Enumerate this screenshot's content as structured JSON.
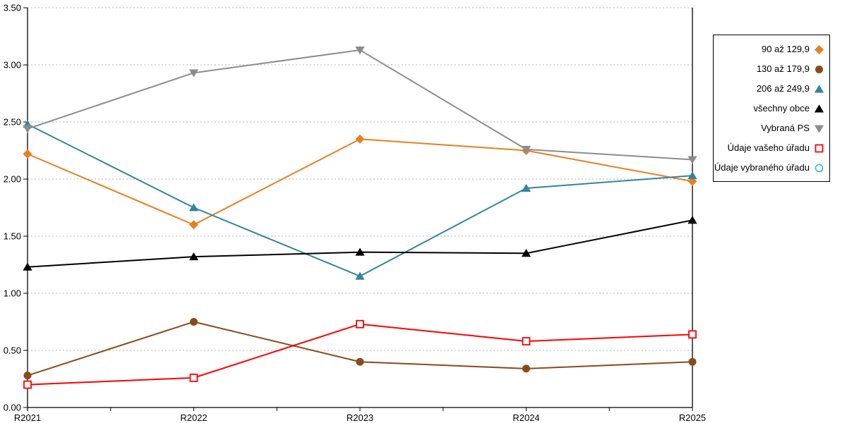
{
  "chart_data": {
    "type": "line",
    "title": "",
    "xlabel": "",
    "ylabel": "",
    "categories": [
      "R2021",
      "R2022",
      "R2023",
      "R2024",
      "R2025"
    ],
    "series": [
      {
        "name": "90 až 129,9",
        "color": "#E8801F",
        "marker": "diamond",
        "values": [
          2.22,
          1.6,
          2.35,
          2.25,
          1.98
        ]
      },
      {
        "name": "130 až 179,9",
        "color": "#8A4A18",
        "marker": "circle",
        "values": [
          0.28,
          0.75,
          0.4,
          0.34,
          0.4
        ]
      },
      {
        "name": "206 až 249,9",
        "color": "#31859C",
        "marker": "triangle-up",
        "values": [
          2.48,
          1.75,
          1.15,
          1.92,
          2.03
        ]
      },
      {
        "name": "všechny obce",
        "color": "#000000",
        "marker": "triangle-up",
        "values": [
          1.23,
          1.32,
          1.36,
          1.35,
          1.64
        ]
      },
      {
        "name": "Vybraná PS",
        "color": "#8C8C8C",
        "marker": "triangle-down",
        "values": [
          2.44,
          2.93,
          3.13,
          2.26,
          2.17
        ]
      },
      {
        "name": "Údaje vašeho úřadu",
        "color": "#FF0000",
        "marker": "square-open",
        "values": [
          0.2,
          0.26,
          0.73,
          0.58,
          0.64
        ]
      },
      {
        "name": "Údaje vybraného úřadu",
        "color": "#2FB5DC",
        "marker": "circle-open",
        "values": []
      }
    ],
    "ylim": [
      0,
      3.5
    ],
    "y_ticks": [
      "0.00",
      "0.50",
      "1.00",
      "1.50",
      "2.00",
      "2.50",
      "3.00",
      "3.50"
    ],
    "grid": "horizontal-dashed",
    "legend_position": "right"
  },
  "colors": {
    "background": "#FFFFFF",
    "grid": "#B8B8B8",
    "axis": "#000000",
    "legend_border": "#000000"
  }
}
